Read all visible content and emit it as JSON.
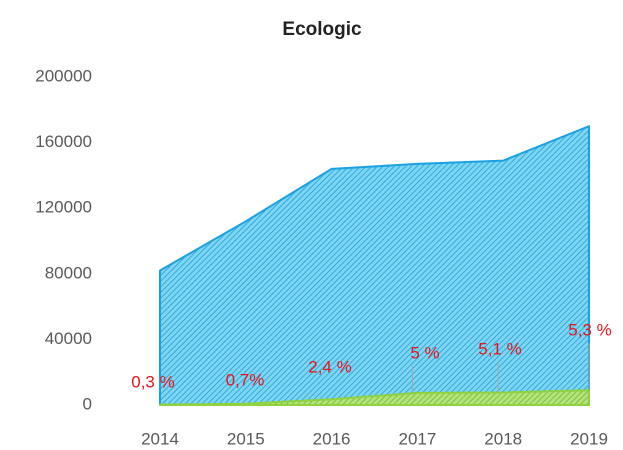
{
  "chart_data": {
    "type": "area",
    "title": "Ecologic",
    "categories": [
      "2014",
      "2015",
      "2016",
      "2017",
      "2018",
      "2019"
    ],
    "series": [
      {
        "color": "#1ba1e2",
        "values": [
          82000,
          112000,
          144000,
          147000,
          149000,
          170000
        ]
      },
      {
        "color": "#8fd13f",
        "values": [
          250,
          800,
          3500,
          7400,
          7600,
          9000
        ]
      }
    ],
    "annotations": [
      "0,3 %",
      "0,7%",
      "2,4 %",
      "5 %",
      "5,1 %",
      "5,3 %"
    ],
    "ylim": [
      0,
      200000
    ],
    "yticks": [
      0,
      40000,
      80000,
      120000,
      160000,
      200000
    ],
    "grid": false
  }
}
